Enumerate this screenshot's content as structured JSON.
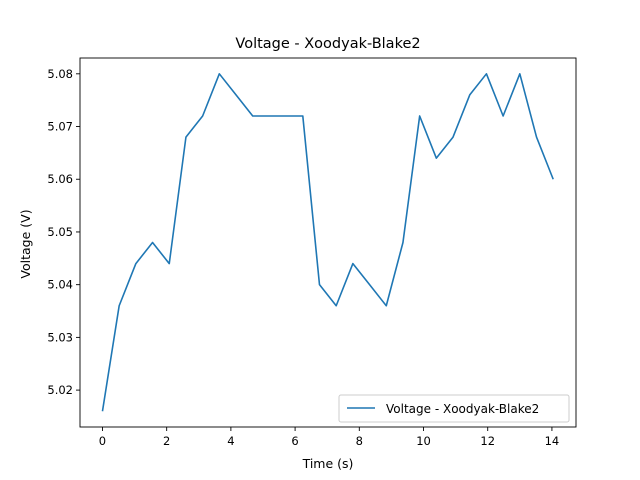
{
  "chart_data": {
    "type": "line",
    "title": "Voltage - Xoodyak-Blake2",
    "xlabel": "Time (s)",
    "ylabel": "Voltage (V)",
    "xlim": [
      -0.7,
      14.75
    ],
    "ylim": [
      5.013,
      5.083
    ],
    "xticks": [
      0,
      2,
      4,
      6,
      8,
      10,
      12,
      14
    ],
    "xtick_labels": [
      "0",
      "2",
      "4",
      "6",
      "8",
      "10",
      "12",
      "14"
    ],
    "yticks": [
      5.02,
      5.03,
      5.04,
      5.05,
      5.06,
      5.07,
      5.08
    ],
    "ytick_labels": [
      "5.02",
      "5.03",
      "5.04",
      "5.05",
      "5.06",
      "5.07",
      "5.08"
    ],
    "grid": false,
    "legend_position": "lower-right",
    "series": [
      {
        "name": "Voltage - Xoodyak-Blake2",
        "color": "#1f77b4",
        "x": [
          0.0,
          0.52,
          1.04,
          1.56,
          2.08,
          2.6,
          3.12,
          3.64,
          4.16,
          4.68,
          5.2,
          5.72,
          6.24,
          6.76,
          7.28,
          7.8,
          8.32,
          8.84,
          9.36,
          9.88,
          10.4,
          10.92,
          11.44,
          11.96,
          12.48,
          13.0,
          13.52,
          14.04
        ],
        "y": [
          5.016,
          5.036,
          5.044,
          5.048,
          5.044,
          5.068,
          5.072,
          5.08,
          5.076,
          5.072,
          5.072,
          5.072,
          5.072,
          5.04,
          5.036,
          5.044,
          5.04,
          5.036,
          5.048,
          5.072,
          5.064,
          5.068,
          5.076,
          5.08,
          5.072,
          5.08,
          5.068,
          5.06
        ]
      }
    ]
  }
}
